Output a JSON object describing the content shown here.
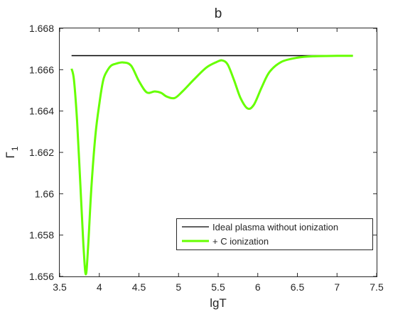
{
  "chart_data": {
    "type": "line",
    "title": "b",
    "xlabel": "lgT",
    "ylabel": "Γ",
    "ylabel_subscript": "1",
    "xlim": [
      3.5,
      7.5
    ],
    "ylim": [
      1.656,
      1.668
    ],
    "xticks": [
      3.5,
      4,
      4.5,
      5,
      5.5,
      6,
      6.5,
      7,
      7.5
    ],
    "xtick_labels": [
      "3.5",
      "4",
      "4.5",
      "5",
      "5.5",
      "6",
      "6.5",
      "7",
      "7.5"
    ],
    "yticks": [
      1.656,
      1.658,
      1.66,
      1.662,
      1.664,
      1.666,
      1.668
    ],
    "ytick_labels": [
      "1.656",
      "1.658",
      "1.66",
      "1.662",
      "1.664",
      "1.666",
      "1.668"
    ],
    "grid": false,
    "legend_position": "bottom-right",
    "series": [
      {
        "name": "Ideal plasma without ionization",
        "color": "#000000",
        "x": [
          3.65,
          7.2
        ],
        "y": [
          1.66668,
          1.66668
        ]
      },
      {
        "name": "+ C ionization",
        "color": "#66ff00",
        "x": [
          3.65,
          3.68,
          3.72,
          3.76,
          3.8,
          3.83,
          3.86,
          3.9,
          3.95,
          4.0,
          4.05,
          4.1,
          4.15,
          4.2,
          4.3,
          4.4,
          4.5,
          4.6,
          4.7,
          4.78,
          4.85,
          4.95,
          5.05,
          5.2,
          5.35,
          5.48,
          5.55,
          5.62,
          5.7,
          5.78,
          5.87,
          5.95,
          6.05,
          6.15,
          6.3,
          6.5,
          6.7,
          7.0,
          7.2
        ],
        "y": [
          1.66605,
          1.6655,
          1.6635,
          1.6605,
          1.6575,
          1.6561,
          1.6575,
          1.6603,
          1.6628,
          1.66435,
          1.6655,
          1.66595,
          1.6662,
          1.66628,
          1.66635,
          1.6662,
          1.66545,
          1.6649,
          1.66495,
          1.66488,
          1.6647,
          1.66463,
          1.66495,
          1.66555,
          1.6661,
          1.66637,
          1.66645,
          1.66625,
          1.6655,
          1.66465,
          1.66413,
          1.6643,
          1.66515,
          1.6659,
          1.66638,
          1.66658,
          1.66665,
          1.66667,
          1.66667
        ]
      }
    ]
  }
}
